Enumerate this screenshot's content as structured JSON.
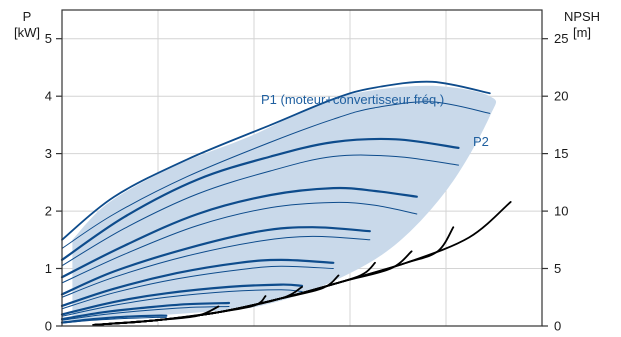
{
  "chart_data": {
    "type": "line",
    "grid": true,
    "colors": {
      "power": "#0e4c8c",
      "band": "#c9d9ea",
      "npsh": "#000000",
      "grid": "#d4d4d4",
      "label": "#1f5f9f"
    },
    "left_axis": {
      "title_line1": "P",
      "title_line2": "[kW]",
      "ylim": [
        0,
        5.5
      ],
      "ticks": [
        0,
        1,
        2,
        3,
        4,
        5
      ],
      "tick_labels": [
        "0",
        "1",
        "2",
        "3",
        "4",
        "5"
      ]
    },
    "right_axis": {
      "title_line1": "NPSH",
      "title_line2": "[m]",
      "ylim": [
        0,
        27.5
      ],
      "ticks": [
        0,
        5,
        10,
        15,
        20,
        25
      ],
      "tick_labels": [
        "0",
        "5",
        "10",
        "15",
        "20",
        "25"
      ]
    },
    "annotations": {
      "p1": "P1 (moteur+convertisseur fréq.)",
      "p2": "P2"
    },
    "band_upper": [
      [
        0.1,
        1.5
      ],
      [
        0.45,
        2.15
      ],
      [
        1.1,
        2.8
      ],
      [
        1.8,
        3.3
      ],
      [
        2.45,
        3.85
      ],
      [
        2.9,
        4.08
      ],
      [
        3.55,
        4.18
      ],
      [
        4.1,
        4.0
      ]
    ],
    "band_lower": [
      [
        4.1,
        3.65
      ],
      [
        3.7,
        2.4
      ],
      [
        3.15,
        1.35
      ],
      [
        2.5,
        0.7
      ],
      [
        1.9,
        0.35
      ],
      [
        1.4,
        0.25
      ],
      [
        0.6,
        0.15
      ],
      [
        0.1,
        0.1
      ]
    ],
    "power_curves": [
      {
        "width": 1.8,
        "points": [
          [
            0,
            1.5
          ],
          [
            0.5,
            2.25
          ],
          [
            1.2,
            2.9
          ],
          [
            2.0,
            3.5
          ],
          [
            2.6,
            3.95
          ],
          [
            3.0,
            4.15
          ],
          [
            3.55,
            4.25
          ],
          [
            4.1,
            4.05
          ]
        ]
      },
      {
        "width": 1.0,
        "points": [
          [
            0,
            1.35
          ],
          [
            0.5,
            1.95
          ],
          [
            1.2,
            2.6
          ],
          [
            2.0,
            3.2
          ],
          [
            2.6,
            3.6
          ],
          [
            3.0,
            3.8
          ],
          [
            3.55,
            3.9
          ],
          [
            4.1,
            3.7
          ]
        ]
      },
      {
        "width": 2.2,
        "points": [
          [
            0,
            1.15
          ],
          [
            0.6,
            1.9
          ],
          [
            1.3,
            2.55
          ],
          [
            2.0,
            2.95
          ],
          [
            2.6,
            3.2
          ],
          [
            3.2,
            3.25
          ],
          [
            3.8,
            3.1
          ]
        ]
      },
      {
        "width": 1.0,
        "points": [
          [
            0,
            1.05
          ],
          [
            0.6,
            1.7
          ],
          [
            1.3,
            2.3
          ],
          [
            2.0,
            2.7
          ],
          [
            2.6,
            2.95
          ],
          [
            3.2,
            2.95
          ],
          [
            3.8,
            2.8
          ]
        ]
      },
      {
        "width": 2.2,
        "points": [
          [
            0,
            0.85
          ],
          [
            0.6,
            1.4
          ],
          [
            1.3,
            1.95
          ],
          [
            2.0,
            2.28
          ],
          [
            2.6,
            2.4
          ],
          [
            3.0,
            2.35
          ],
          [
            3.4,
            2.25
          ]
        ]
      },
      {
        "width": 1.0,
        "points": [
          [
            0,
            0.75
          ],
          [
            0.6,
            1.25
          ],
          [
            1.3,
            1.75
          ],
          [
            2.0,
            2.06
          ],
          [
            2.6,
            2.15
          ],
          [
            3.0,
            2.1
          ],
          [
            3.4,
            1.95
          ]
        ]
      },
      {
        "width": 2.2,
        "points": [
          [
            0,
            0.55
          ],
          [
            0.5,
            0.95
          ],
          [
            1.2,
            1.35
          ],
          [
            1.9,
            1.65
          ],
          [
            2.4,
            1.72
          ],
          [
            2.95,
            1.65
          ]
        ]
      },
      {
        "width": 1.0,
        "points": [
          [
            0,
            0.5
          ],
          [
            0.5,
            0.85
          ],
          [
            1.2,
            1.22
          ],
          [
            1.9,
            1.48
          ],
          [
            2.4,
            1.56
          ],
          [
            2.95,
            1.5
          ]
        ]
      },
      {
        "width": 2.2,
        "points": [
          [
            0,
            0.35
          ],
          [
            0.5,
            0.65
          ],
          [
            1.1,
            0.92
          ],
          [
            1.7,
            1.1
          ],
          [
            2.1,
            1.15
          ],
          [
            2.6,
            1.1
          ]
        ]
      },
      {
        "width": 1.0,
        "points": [
          [
            0,
            0.3
          ],
          [
            0.5,
            0.58
          ],
          [
            1.1,
            0.82
          ],
          [
            1.7,
            0.98
          ],
          [
            2.1,
            1.04
          ],
          [
            2.6,
            1.0
          ]
        ]
      },
      {
        "width": 2.2,
        "points": [
          [
            0,
            0.2
          ],
          [
            0.5,
            0.42
          ],
          [
            1.0,
            0.57
          ],
          [
            1.6,
            0.68
          ],
          [
            2.1,
            0.72
          ],
          [
            2.3,
            0.7
          ]
        ]
      },
      {
        "width": 1.0,
        "points": [
          [
            0,
            0.17
          ],
          [
            0.5,
            0.36
          ],
          [
            1.0,
            0.5
          ],
          [
            1.6,
            0.6
          ],
          [
            2.1,
            0.63
          ],
          [
            2.3,
            0.6
          ]
        ]
      },
      {
        "width": 2.2,
        "points": [
          [
            0,
            0.12
          ],
          [
            0.4,
            0.24
          ],
          [
            0.8,
            0.32
          ],
          [
            1.2,
            0.38
          ],
          [
            1.6,
            0.4
          ]
        ]
      },
      {
        "width": 1.0,
        "points": [
          [
            0,
            0.1
          ],
          [
            0.4,
            0.2
          ],
          [
            0.8,
            0.27
          ],
          [
            1.2,
            0.32
          ],
          [
            1.6,
            0.34
          ]
        ]
      },
      {
        "width": 2.2,
        "points": [
          [
            0,
            0.06
          ],
          [
            0.3,
            0.12
          ],
          [
            0.6,
            0.16
          ],
          [
            0.9,
            0.18
          ],
          [
            1.0,
            0.18
          ]
        ]
      },
      {
        "width": 1.0,
        "points": [
          [
            0,
            0.05
          ],
          [
            0.3,
            0.1
          ],
          [
            0.6,
            0.13
          ],
          [
            0.9,
            0.15
          ],
          [
            1.0,
            0.15
          ]
        ]
      }
    ],
    "npsh_curves": [
      {
        "points": [
          [
            0.3,
            0.1
          ],
          [
            0.9,
            0.5
          ],
          [
            1.5,
            1.2
          ],
          [
            2.1,
            2.4
          ],
          [
            2.7,
            3.9
          ],
          [
            3.3,
            5.5
          ],
          [
            3.9,
            7.7
          ],
          [
            4.3,
            10.8
          ]
        ]
      },
      {
        "points": [
          [
            0.3,
            0.1
          ],
          [
            0.9,
            0.5
          ],
          [
            1.5,
            1.2
          ],
          [
            2.1,
            2.4
          ],
          [
            2.7,
            3.9
          ],
          [
            3.3,
            5.5
          ],
          [
            3.6,
            6.5
          ],
          [
            3.75,
            8.6
          ]
        ]
      },
      {
        "points": [
          [
            0.3,
            0.1
          ],
          [
            0.9,
            0.5
          ],
          [
            1.5,
            1.2
          ],
          [
            2.1,
            2.4
          ],
          [
            2.7,
            3.9
          ],
          [
            3.15,
            5.0
          ],
          [
            3.35,
            6.5
          ]
        ]
      },
      {
        "points": [
          [
            0.3,
            0.1
          ],
          [
            0.9,
            0.5
          ],
          [
            1.5,
            1.2
          ],
          [
            2.1,
            2.4
          ],
          [
            2.7,
            3.9
          ],
          [
            2.9,
            4.6
          ],
          [
            3.0,
            5.5
          ]
        ]
      },
      {
        "points": [
          [
            0.3,
            0.1
          ],
          [
            0.9,
            0.5
          ],
          [
            1.5,
            1.2
          ],
          [
            2.1,
            2.4
          ],
          [
            2.5,
            3.3
          ],
          [
            2.65,
            4.4
          ]
        ]
      },
      {
        "points": [
          [
            0.3,
            0.1
          ],
          [
            0.9,
            0.5
          ],
          [
            1.5,
            1.2
          ],
          [
            2.1,
            2.4
          ],
          [
            2.3,
            3.4
          ]
        ]
      },
      {
        "points": [
          [
            0.3,
            0.1
          ],
          [
            0.9,
            0.5
          ],
          [
            1.5,
            1.2
          ],
          [
            1.85,
            1.8
          ],
          [
            1.95,
            2.6
          ]
        ]
      },
      {
        "points": [
          [
            0.3,
            0.1
          ],
          [
            0.9,
            0.5
          ],
          [
            1.3,
            0.9
          ],
          [
            1.5,
            1.7
          ]
        ]
      }
    ]
  }
}
